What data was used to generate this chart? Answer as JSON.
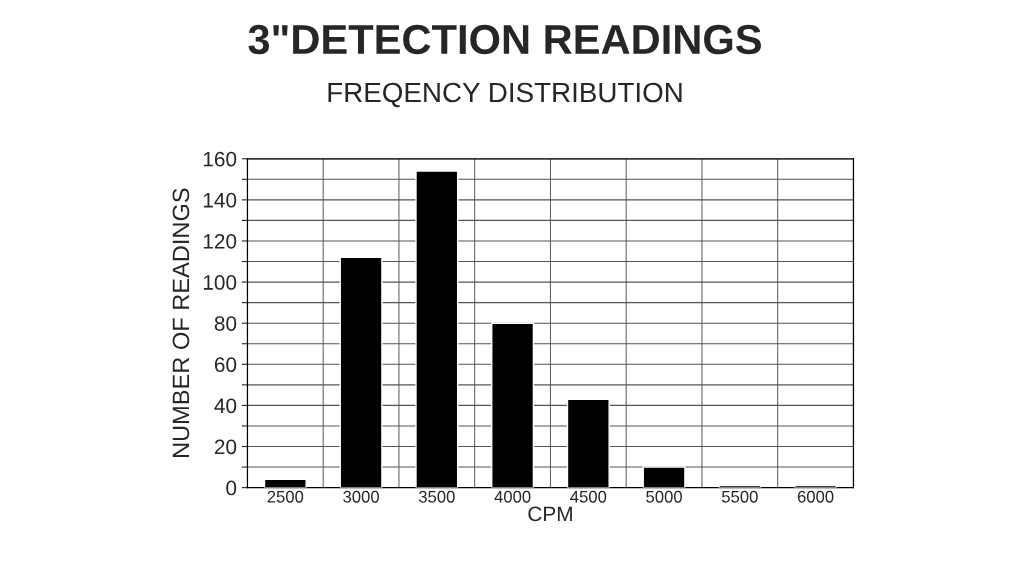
{
  "chart_data": {
    "type": "bar",
    "title": "3\"DETECTION READINGS",
    "subtitle": "FREQENCY DISTRIBUTION",
    "xlabel": "CPM",
    "ylabel": "NUMBER OF READINGS",
    "categories": [
      "2500",
      "3000",
      "3500",
      "4000",
      "4500",
      "5000",
      "5500",
      "6000"
    ],
    "values": [
      4,
      112,
      154,
      80,
      43,
      10,
      1,
      1
    ],
    "color": "#000000",
    "ylim": [
      0,
      160
    ],
    "yticks": [
      0,
      {
        "value": 10,
        "label": null
      },
      20,
      {
        "value": 30,
        "label": null
      },
      40,
      {
        "value": 50,
        "label": null
      },
      60,
      {
        "value": 70,
        "label": null
      },
      80,
      {
        "value": 90,
        "label": null
      },
      100,
      {
        "value": 110,
        "label": null
      },
      120,
      {
        "value": 130,
        "label": null
      },
      140,
      {
        "value": 150,
        "label": null
      },
      160
    ],
    "grid": true
  }
}
